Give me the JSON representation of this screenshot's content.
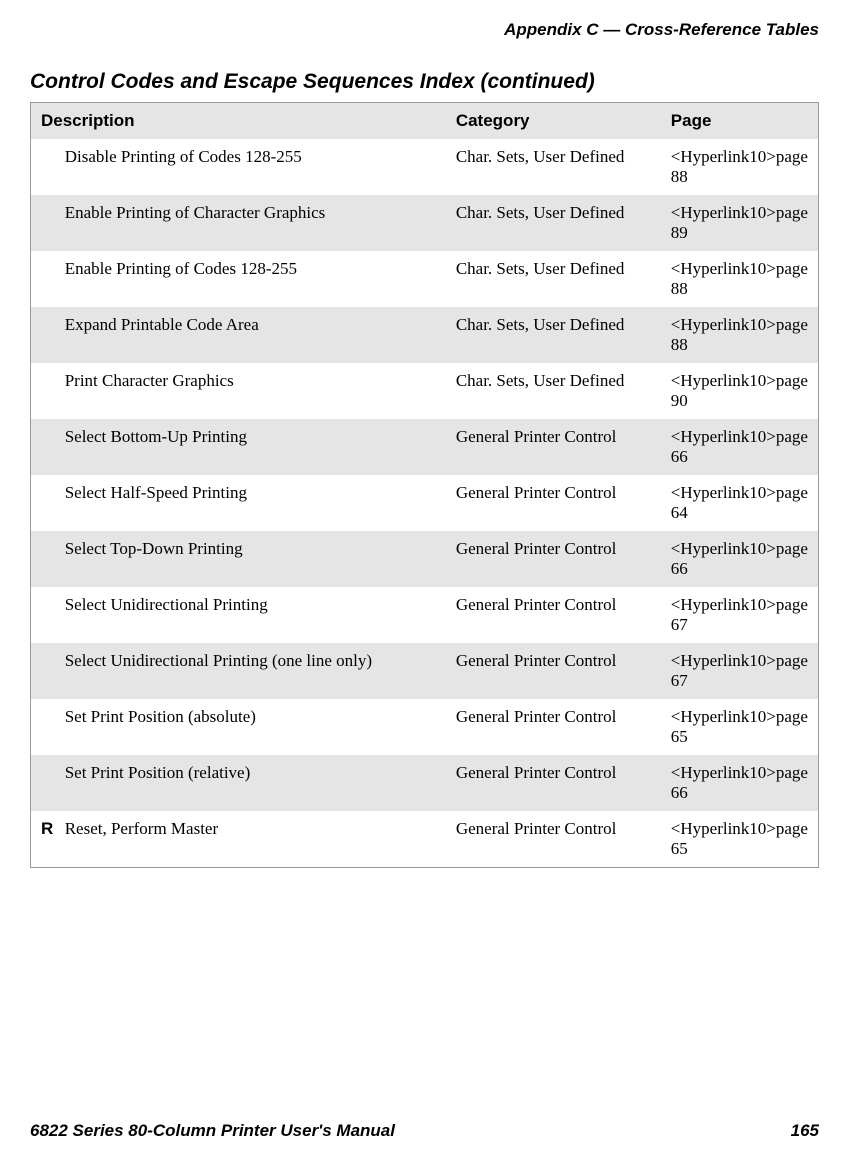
{
  "header": {
    "appendix": "Appendix C — Cross-Reference Tables"
  },
  "section_title": "Control Codes and Escape Sequences Index (continued)",
  "table": {
    "columns": [
      "Description",
      "Category",
      "Page"
    ],
    "rows": [
      {
        "code": "",
        "description": "Disable Printing of Codes 128-255",
        "category": "Char. Sets, User Defined",
        "page": "<Hyperlink10>page 88",
        "shaded": false
      },
      {
        "code": "",
        "description": "Enable Printing of Character Graphics",
        "category": "Char. Sets, User Defined",
        "page": "<Hyperlink10>page 89",
        "shaded": true
      },
      {
        "code": "",
        "description": "Enable Printing of Codes 128-255",
        "category": "Char. Sets, User Defined",
        "page": "<Hyperlink10>page 88",
        "shaded": false
      },
      {
        "code": "",
        "description": "Expand Printable Code Area",
        "category": "Char. Sets, User Defined",
        "page": "<Hyperlink10>page 88",
        "shaded": true
      },
      {
        "code": "",
        "description": "Print Character Graphics",
        "category": "Char. Sets, User Defined",
        "page": "<Hyperlink10>page 90",
        "shaded": false
      },
      {
        "code": "",
        "description": "Select Bottom-Up Printing",
        "category": "General Printer Control",
        "page": "<Hyperlink10>page 66",
        "shaded": true
      },
      {
        "code": "",
        "description": "Select Half-Speed Printing",
        "category": "General Printer Control",
        "page": "<Hyperlink10>page 64",
        "shaded": false
      },
      {
        "code": "",
        "description": "Select Top-Down Printing",
        "category": "General Printer Control",
        "page": "<Hyperlink10>page 66",
        "shaded": true
      },
      {
        "code": "",
        "description": "Select Unidirectional Printing",
        "category": "General Printer Control",
        "page": "<Hyperlink10>page 67",
        "shaded": false
      },
      {
        "code": "",
        "description": "Select Unidirectional Printing (one line only)",
        "category": "General Printer Control",
        "page": "<Hyperlink10>page 67",
        "shaded": true
      },
      {
        "code": "",
        "description": "Set Print Position (absolute)",
        "category": "General Printer Control",
        "page": "<Hyperlink10>page 65",
        "shaded": false
      },
      {
        "code": "",
        "description": "Set Print Position (relative)",
        "category": "General Printer Control",
        "page": "<Hyperlink10>page 66",
        "shaded": true
      },
      {
        "code": "R",
        "description": "Reset, Perform Master",
        "category": "General Printer Control",
        "page": "<Hyperlink10>page 65",
        "shaded": false
      }
    ]
  },
  "footer": {
    "manual_title": "6822 Series 80-Column Printer User's Manual",
    "page_number": "165"
  },
  "colors": {
    "background": "#ffffff",
    "shaded_row": "#e5e5e5",
    "text": "#000000",
    "border": "#999999"
  }
}
